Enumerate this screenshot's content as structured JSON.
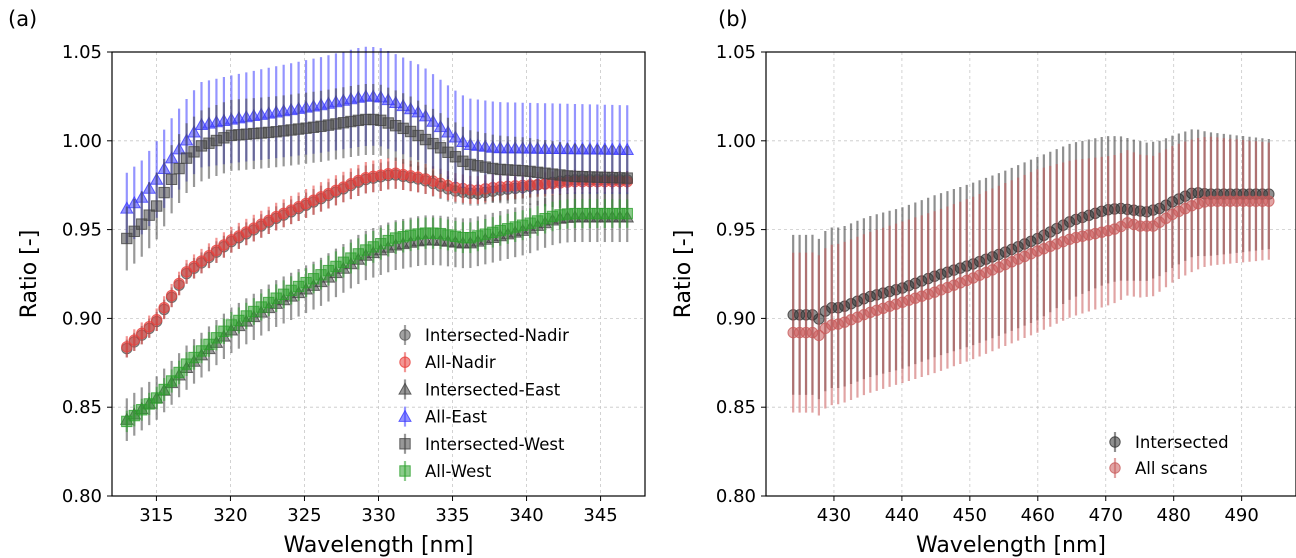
{
  "figure": {
    "panels": [
      {
        "label": "(a)"
      },
      {
        "label": "(b)"
      }
    ]
  },
  "chart_data": [
    {
      "type": "scatter",
      "panel": "(a)",
      "xlabel": "Wavelength [nm]",
      "ylabel": "Ratio [-]",
      "xlim": [
        312,
        348
      ],
      "ylim": [
        0.8,
        1.05
      ],
      "xticks": [
        315,
        320,
        325,
        330,
        335,
        340,
        345
      ],
      "yticks": [
        0.8,
        0.85,
        0.9,
        0.95,
        1.0,
        1.05
      ],
      "ytick_labels": [
        "0.80",
        "0.85",
        "0.90",
        "0.95",
        "1.00",
        "1.05"
      ],
      "grid": true,
      "legend_position": "lower-right",
      "x_range": [
        313.0,
        346.8
      ],
      "n_points": 68,
      "series": [
        {
          "name": "Intersected-Nadir",
          "marker": "circle",
          "color": "#555555",
          "knots": [
            [
              313,
              0.883
            ],
            [
              315,
              0.898
            ],
            [
              317,
              0.925
            ],
            [
              320,
              0.943
            ],
            [
              323,
              0.956
            ],
            [
              326,
              0.967
            ],
            [
              329,
              0.978
            ],
            [
              331,
              0.981
            ],
            [
              333,
              0.978
            ],
            [
              335,
              0.972
            ],
            [
              336.5,
              0.97
            ],
            [
              338,
              0.972
            ],
            [
              340,
              0.974
            ],
            [
              342,
              0.977
            ],
            [
              343,
              0.978
            ],
            [
              346.8,
              0.978
            ]
          ],
          "err_knots": [
            [
              313,
              0.005
            ],
            [
              330,
              0.008
            ],
            [
              346.8,
              0.005
            ]
          ]
        },
        {
          "name": "All-Nadir",
          "marker": "circle",
          "color": "#e8403c",
          "knots": [
            [
              313,
              0.884
            ],
            [
              315,
              0.899
            ],
            [
              317,
              0.926
            ],
            [
              320,
              0.944
            ],
            [
              323,
              0.957
            ],
            [
              326,
              0.968
            ],
            [
              329,
              0.979
            ],
            [
              331,
              0.982
            ],
            [
              333,
              0.979
            ],
            [
              335,
              0.974
            ],
            [
              336.5,
              0.972
            ],
            [
              338,
              0.974
            ],
            [
              340,
              0.975
            ],
            [
              342,
              0.976
            ],
            [
              343,
              0.977
            ],
            [
              346.8,
              0.977
            ]
          ],
          "err_knots": [
            [
              313,
              0.006
            ],
            [
              330,
              0.009
            ],
            [
              346.8,
              0.006
            ]
          ]
        },
        {
          "name": "Intersected-East",
          "marker": "triangle",
          "color": "#444444",
          "knots": [
            [
              313,
              0.843
            ],
            [
              315,
              0.855
            ],
            [
              317,
              0.872
            ],
            [
              320,
              0.893
            ],
            [
              323,
              0.908
            ],
            [
              326,
              0.92
            ],
            [
              329,
              0.935
            ],
            [
              331,
              0.941
            ],
            [
              333,
              0.944
            ],
            [
              334,
              0.944
            ],
            [
              336,
              0.942
            ],
            [
              338,
              0.946
            ],
            [
              340,
              0.95
            ],
            [
              342,
              0.956
            ],
            [
              343,
              0.957
            ],
            [
              346.8,
              0.957
            ]
          ],
          "err_knots": [
            [
              313,
              0.012
            ],
            [
              330,
              0.014
            ],
            [
              346.8,
              0.014
            ]
          ]
        },
        {
          "name": "All-East",
          "marker": "triangle",
          "color": "#3c3cff",
          "knots": [
            [
              313,
              0.962
            ],
            [
              314,
              0.968
            ],
            [
              315,
              0.978
            ],
            [
              316,
              0.99
            ],
            [
              317,
              1.0
            ],
            [
              318,
              1.009
            ],
            [
              320,
              1.012
            ],
            [
              323,
              1.016
            ],
            [
              326,
              1.02
            ],
            [
              329,
              1.025
            ],
            [
              330,
              1.025
            ],
            [
              331,
              1.022
            ],
            [
              333,
              1.015
            ],
            [
              335,
              1.003
            ],
            [
              336,
              0.998
            ],
            [
              338,
              0.996
            ],
            [
              346.8,
              0.995
            ]
          ],
          "err_knots": [
            [
              313,
              0.02
            ],
            [
              318,
              0.024
            ],
            [
              329,
              0.028
            ],
            [
              336,
              0.026
            ],
            [
              346.8,
              0.025
            ]
          ]
        },
        {
          "name": "Intersected-West",
          "marker": "square",
          "color": "#444444",
          "knots": [
            [
              313,
              0.945
            ],
            [
              314,
              0.953
            ],
            [
              315,
              0.963
            ],
            [
              316,
              0.978
            ],
            [
              317,
              0.99
            ],
            [
              318,
              0.997
            ],
            [
              320,
              1.003
            ],
            [
              323,
              1.005
            ],
            [
              326,
              1.008
            ],
            [
              329,
              1.012
            ],
            [
              330,
              1.012
            ],
            [
              332,
              1.006
            ],
            [
              334,
              0.997
            ],
            [
              336,
              0.987
            ],
            [
              338,
              0.984
            ],
            [
              340,
              0.983
            ],
            [
              343,
              0.98
            ],
            [
              346.8,
              0.979
            ]
          ],
          "err_knots": [
            [
              313,
              0.018
            ],
            [
              318,
              0.02
            ],
            [
              330,
              0.02
            ],
            [
              346.8,
              0.018
            ]
          ]
        },
        {
          "name": "All-West",
          "marker": "square",
          "color": "#2ca02c",
          "knots": [
            [
              313,
              0.842
            ],
            [
              315,
              0.855
            ],
            [
              317,
              0.874
            ],
            [
              320,
              0.896
            ],
            [
              323,
              0.911
            ],
            [
              326,
              0.924
            ],
            [
              329,
              0.938
            ],
            [
              331,
              0.945
            ],
            [
              333,
              0.948
            ],
            [
              334,
              0.948
            ],
            [
              336,
              0.945
            ],
            [
              338,
              0.949
            ],
            [
              340,
              0.953
            ],
            [
              342,
              0.958
            ],
            [
              343,
              0.959
            ],
            [
              346.8,
              0.959
            ]
          ],
          "err_knots": [
            [
              313,
              0.006
            ],
            [
              330,
              0.009
            ],
            [
              346.8,
              0.008
            ]
          ]
        }
      ]
    },
    {
      "type": "scatter",
      "panel": "(b)",
      "xlabel": "Wavelength [nm]",
      "ylabel": "Ratio [-]",
      "xlim": [
        420,
        498
      ],
      "ylim": [
        0.8,
        1.05
      ],
      "xticks": [
        430,
        440,
        450,
        460,
        470,
        480,
        490
      ],
      "yticks": [
        0.8,
        0.85,
        0.9,
        0.95,
        1.0,
        1.05
      ],
      "ytick_labels": [
        "0.80",
        "0.85",
        "0.90",
        "0.95",
        "1.00",
        "1.05"
      ],
      "grid": true,
      "legend_position": "lower-right",
      "x_range": [
        424.0,
        494.0
      ],
      "n_points": 75,
      "series": [
        {
          "name": "Intersected",
          "marker": "circle",
          "color": "#333333",
          "knots": [
            [
              424,
              0.902
            ],
            [
              427,
              0.902
            ],
            [
              428,
              0.899
            ],
            [
              429,
              0.906
            ],
            [
              431,
              0.906
            ],
            [
              435,
              0.912
            ],
            [
              440,
              0.917
            ],
            [
              445,
              0.924
            ],
            [
              450,
              0.93
            ],
            [
              455,
              0.937
            ],
            [
              460,
              0.945
            ],
            [
              465,
              0.955
            ],
            [
              470,
              0.961
            ],
            [
              472,
              0.962
            ],
            [
              474,
              0.961
            ],
            [
              476,
              0.96
            ],
            [
              478,
              0.962
            ],
            [
              480,
              0.966
            ],
            [
              483,
              0.971
            ],
            [
              485,
              0.97
            ],
            [
              494,
              0.97
            ]
          ],
          "err_knots": [
            [
              424,
              0.045
            ],
            [
              460,
              0.046
            ],
            [
              494,
              0.031
            ]
          ]
        },
        {
          "name": "All scans",
          "marker": "circle",
          "color": "#c85a5a",
          "knots": [
            [
              424,
              0.892
            ],
            [
              427,
              0.892
            ],
            [
              428,
              0.89
            ],
            [
              429,
              0.896
            ],
            [
              431,
              0.897
            ],
            [
              435,
              0.903
            ],
            [
              440,
              0.909
            ],
            [
              445,
              0.915
            ],
            [
              450,
              0.922
            ],
            [
              455,
              0.93
            ],
            [
              460,
              0.938
            ],
            [
              465,
              0.945
            ],
            [
              470,
              0.949
            ],
            [
              472,
              0.951
            ],
            [
              473,
              0.954
            ],
            [
              475,
              0.952
            ],
            [
              477,
              0.952
            ],
            [
              480,
              0.959
            ],
            [
              483,
              0.964
            ],
            [
              485,
              0.966
            ],
            [
              494,
              0.966
            ]
          ],
          "err_knots": [
            [
              424,
              0.045
            ],
            [
              460,
              0.046
            ],
            [
              494,
              0.033
            ]
          ]
        }
      ]
    }
  ]
}
